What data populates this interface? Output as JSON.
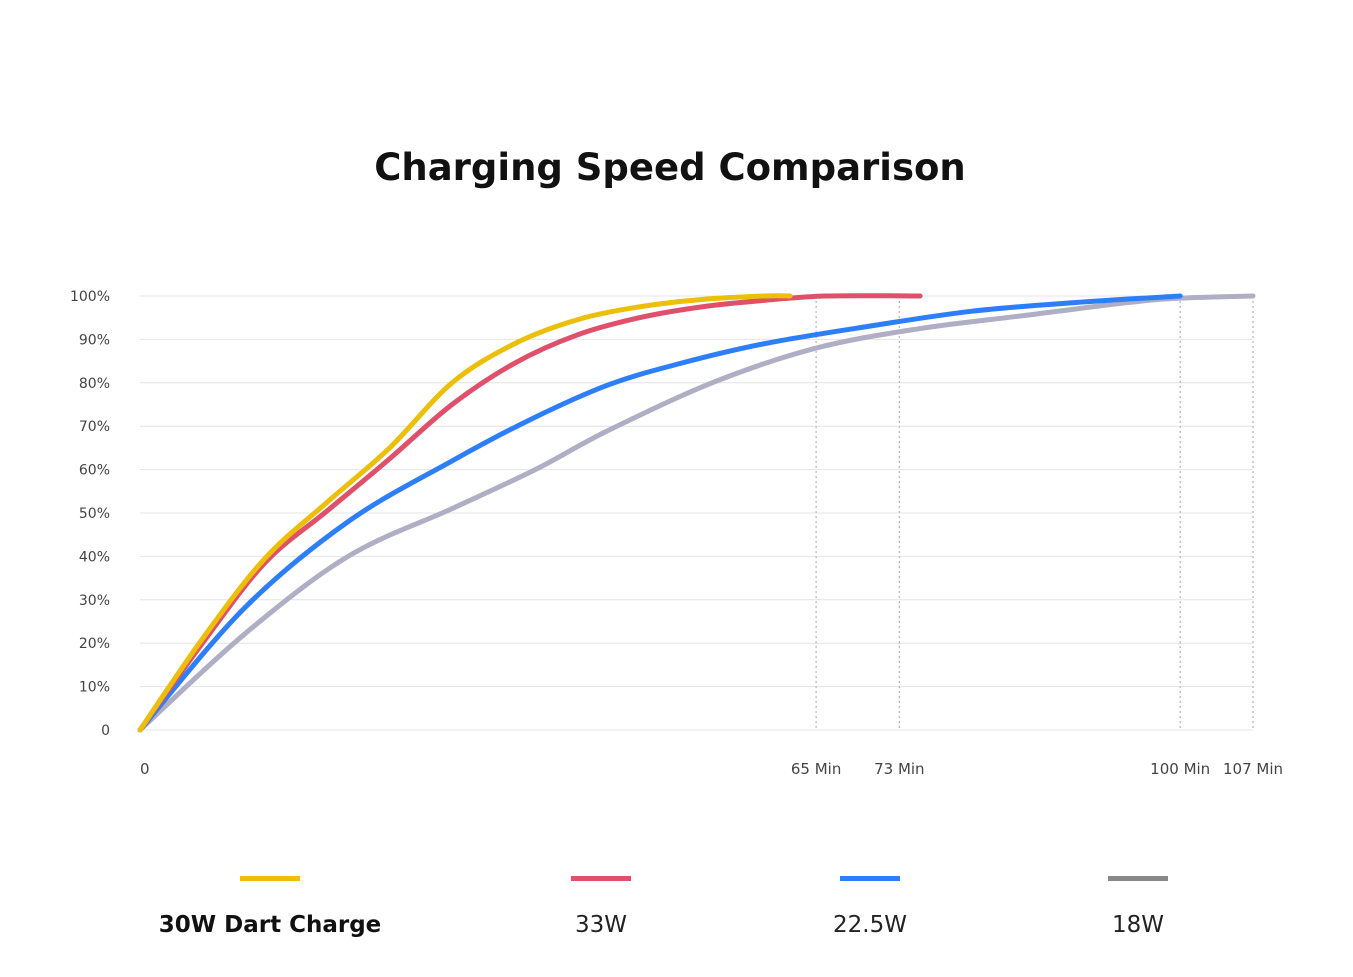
{
  "chart_data": {
    "type": "line",
    "title": "Charging Speed Comparison",
    "xlabel": "",
    "ylabel": "",
    "xlim": [
      0,
      107
    ],
    "ylim": [
      0,
      100
    ],
    "y_ticks": [
      "0",
      "10%",
      "20%",
      "30%",
      "40%",
      "50%",
      "60%",
      "70%",
      "80%",
      "90%",
      "100%"
    ],
    "x_ticks": [
      {
        "value": 0,
        "label": "0"
      },
      {
        "value": 65,
        "label": "65 Min"
      },
      {
        "value": 73,
        "label": "73 Min"
      },
      {
        "value": 100,
        "label": "100 Min"
      },
      {
        "value": 107,
        "label": "107 Min"
      }
    ],
    "grid": true,
    "legend_position": "bottom",
    "series": [
      {
        "name": "30W Dart Charge",
        "color": "#EBBF0A",
        "x": [
          0,
          6,
          12,
          18,
          24,
          30,
          36,
          42,
          48,
          54,
          60,
          62.5
        ],
        "y": [
          0,
          21,
          39.5,
          52.5,
          65,
          80,
          89,
          94.5,
          97.5,
          99.2,
          100,
          100
        ]
      },
      {
        "name": "33W",
        "color": "#E0506B",
        "x": [
          0,
          6,
          12,
          18,
          24,
          30,
          36,
          42,
          48,
          54,
          60,
          66,
          75
        ],
        "y": [
          0,
          20,
          38.5,
          50.5,
          62.5,
          75,
          84.5,
          91,
          95,
          97.5,
          99,
          100,
          100
        ]
      },
      {
        "name": "22.5W",
        "color": "#2D7FF9",
        "x": [
          0,
          10,
          20,
          30,
          37.5,
          45,
          52,
          60,
          70,
          80,
          90,
          100
        ],
        "y": [
          0,
          28,
          48,
          62,
          71.5,
          79.5,
          84.5,
          89,
          93,
          96.5,
          98.5,
          100
        ]
      },
      {
        "name": "18W",
        "color": "#B0AEC4",
        "x": [
          0,
          10,
          20,
          30,
          38,
          45,
          55,
          65,
          75,
          85,
          95,
          100,
          107
        ],
        "y": [
          0,
          22,
          40,
          51,
          60,
          69,
          80,
          88,
          92.5,
          95.5,
          98.5,
          99.5,
          100
        ]
      }
    ],
    "legend_swatch_colors": [
      "#EBBF0A",
      "#E0506B",
      "#2D7FF9",
      "#888888"
    ]
  }
}
